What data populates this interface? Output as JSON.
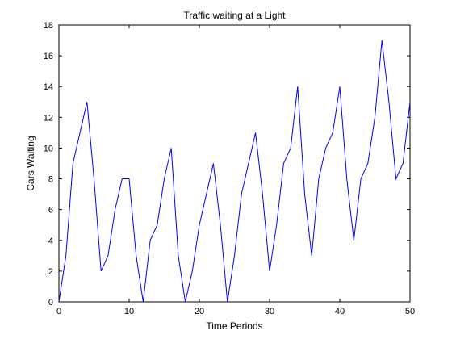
{
  "chart_data": {
    "type": "line",
    "title": "Traffic waiting at a Light",
    "xlabel": "Time Periods",
    "ylabel": "Cars Waiting",
    "xlim": [
      0,
      50
    ],
    "ylim": [
      0,
      18
    ],
    "xticks": [
      0,
      10,
      20,
      30,
      40,
      50
    ],
    "yticks": [
      0,
      2,
      4,
      6,
      8,
      10,
      12,
      14,
      16,
      18
    ],
    "grid": false,
    "series": [
      {
        "color": "#0000ff",
        "x": [
          0,
          1,
          2,
          3,
          4,
          5,
          6,
          7,
          8,
          9,
          10,
          11,
          12,
          13,
          14,
          15,
          16,
          17,
          18,
          19,
          20,
          21,
          22,
          23,
          24,
          25,
          26,
          27,
          28,
          29,
          30,
          31,
          32,
          33,
          34,
          35,
          36,
          37,
          38,
          39,
          40,
          41,
          42,
          43,
          44,
          45,
          46,
          47,
          48,
          49,
          50
        ],
        "y": [
          0,
          3,
          9,
          11,
          13,
          8,
          2,
          3,
          6,
          8,
          8,
          3,
          0,
          4,
          5,
          8,
          10,
          3,
          0,
          2,
          5,
          7,
          9,
          5,
          0,
          3,
          7,
          9,
          11,
          7,
          2,
          5,
          9,
          10,
          14,
          7,
          3,
          8,
          10,
          11,
          14,
          8,
          4,
          8,
          9,
          12,
          17,
          13,
          8,
          9,
          13
        ]
      }
    ]
  }
}
